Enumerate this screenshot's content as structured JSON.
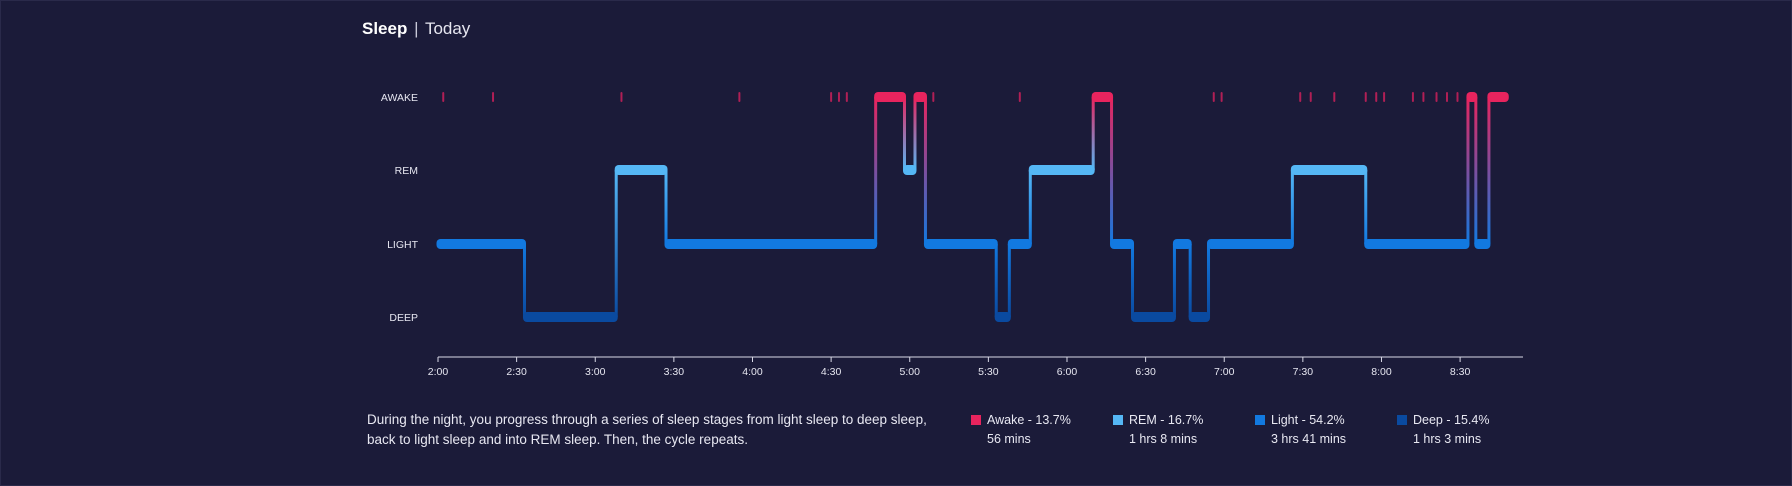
{
  "header": {
    "title": "Sleep",
    "separator": "|",
    "subtitle": "Today"
  },
  "description": "During the night, you progress through a series of sleep stages from light sleep to deep sleep, back to light sleep and into REM sleep. Then, the cycle repeats.",
  "legend": [
    {
      "label": "Awake - 13.7%",
      "duration": "56 mins",
      "color": "#e8245e"
    },
    {
      "label": "REM - 16.7%",
      "duration": "1 hrs 8 mins",
      "color": "#55b7f5"
    },
    {
      "label": "Light - 54.2%",
      "duration": "3 hrs 41 mins",
      "color": "#1279e0"
    },
    {
      "label": "Deep - 15.4%",
      "duration": "1 hrs 3 mins",
      "color": "#0a4aa0"
    }
  ],
  "chart_data": {
    "type": "line",
    "title": "Sleep",
    "stages": [
      "AWAKE",
      "REM",
      "LIGHT",
      "DEEP"
    ],
    "x_ticks": [
      "2:00",
      "2:30",
      "3:00",
      "3:30",
      "4:00",
      "4:30",
      "5:00",
      "5:30",
      "6:00",
      "6:30",
      "7:00",
      "7:30",
      "8:00",
      "8:30"
    ],
    "x_range": [
      "2:00",
      "8:54"
    ],
    "colors": {
      "AWAKE": "#e8245e",
      "REM": "#55b7f5",
      "LIGHT": "#1279e0",
      "DEEP": "#0a4aa0"
    },
    "segments": [
      {
        "stage": "LIGHT",
        "start": "2:00",
        "end": "2:33"
      },
      {
        "stage": "DEEP",
        "start": "2:33",
        "end": "3:08"
      },
      {
        "stage": "REM",
        "start": "3:08",
        "end": "3:27"
      },
      {
        "stage": "LIGHT",
        "start": "3:27",
        "end": "4:47"
      },
      {
        "stage": "AWAKE",
        "start": "4:47",
        "end": "4:58"
      },
      {
        "stage": "REM",
        "start": "4:58",
        "end": "5:02"
      },
      {
        "stage": "AWAKE",
        "start": "5:02",
        "end": "5:06"
      },
      {
        "stage": "LIGHT",
        "start": "5:06",
        "end": "5:33"
      },
      {
        "stage": "DEEP",
        "start": "5:33",
        "end": "5:38"
      },
      {
        "stage": "LIGHT",
        "start": "5:38",
        "end": "5:46"
      },
      {
        "stage": "REM",
        "start": "5:46",
        "end": "6:10"
      },
      {
        "stage": "AWAKE",
        "start": "6:10",
        "end": "6:17"
      },
      {
        "stage": "LIGHT",
        "start": "6:17",
        "end": "6:25"
      },
      {
        "stage": "DEEP",
        "start": "6:25",
        "end": "6:41"
      },
      {
        "stage": "LIGHT",
        "start": "6:41",
        "end": "6:47"
      },
      {
        "stage": "DEEP",
        "start": "6:47",
        "end": "6:54"
      },
      {
        "stage": "LIGHT",
        "start": "6:54",
        "end": "7:26"
      },
      {
        "stage": "REM",
        "start": "7:26",
        "end": "7:54"
      },
      {
        "stage": "LIGHT",
        "start": "7:54",
        "end": "8:33"
      },
      {
        "stage": "AWAKE",
        "start": "8:33",
        "end": "8:36"
      },
      {
        "stage": "LIGHT",
        "start": "8:36",
        "end": "8:41"
      },
      {
        "stage": "AWAKE",
        "start": "8:41",
        "end": "8:48"
      }
    ],
    "brief_awakenings": [
      "2:02",
      "2:21",
      "3:10",
      "3:55",
      "4:30",
      "4:33",
      "4:36",
      "5:09",
      "5:42",
      "6:56",
      "6:59",
      "7:29",
      "7:33",
      "7:42",
      "7:54",
      "7:58",
      "8:01",
      "8:12",
      "8:16",
      "8:21",
      "8:25",
      "8:29"
    ]
  }
}
